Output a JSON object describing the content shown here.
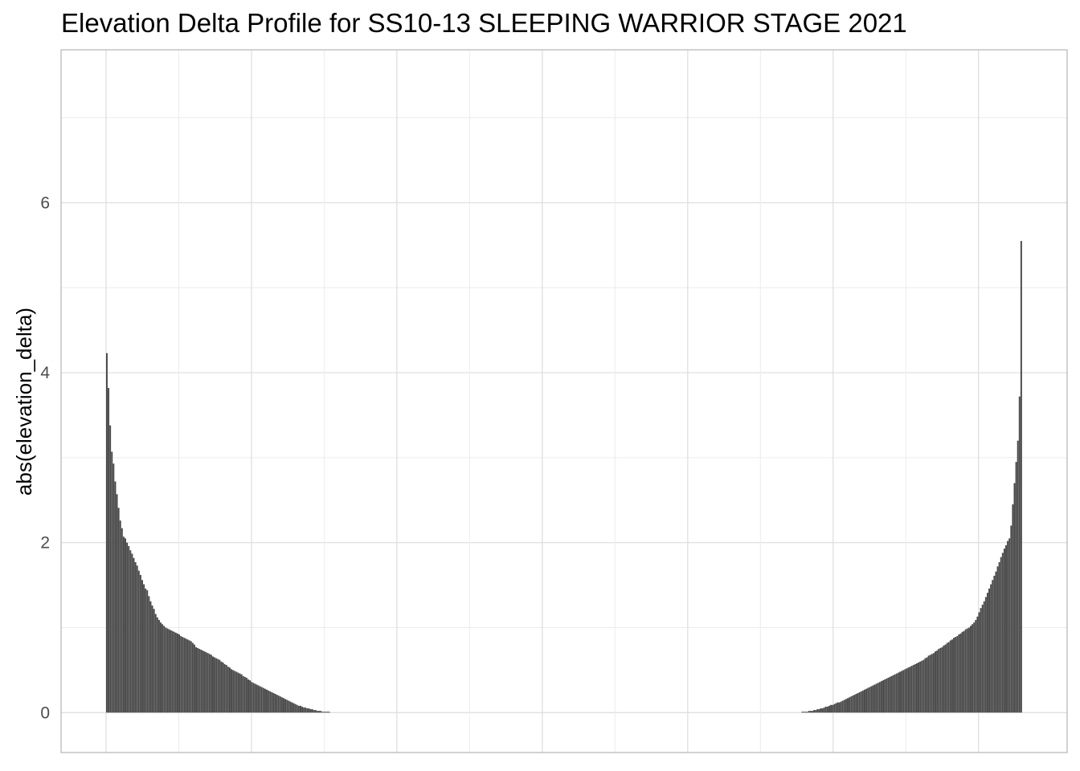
{
  "chart_data": {
    "type": "bar",
    "title": "Elevation Delta Profile for SS10-13 SLEEPING WARRIOR STAGE 2021",
    "xlabel": "",
    "ylabel": "abs(elevation_delta)",
    "ylim": [
      -0.47,
      7.8
    ],
    "y_ticks": [
      0,
      2,
      4,
      6
    ],
    "y_tick_labels": [
      "0",
      "2",
      "4",
      "6"
    ],
    "grid": true,
    "x_count": 565,
    "series": [
      {
        "values": [
          4.23,
          3.82,
          3.38,
          3.07,
          2.93,
          2.72,
          2.57,
          2.41,
          2.26,
          2.17,
          2.07,
          2.05,
          2.0,
          1.96,
          1.91,
          1.87,
          1.82,
          1.77,
          1.73,
          1.67,
          1.62,
          1.56,
          1.51,
          1.46,
          1.44,
          1.37,
          1.31,
          1.26,
          1.22,
          1.16,
          1.12,
          1.09,
          1.06,
          1.04,
          1.02,
          1.0,
          0.99,
          0.98,
          0.97,
          0.96,
          0.95,
          0.94,
          0.93,
          0.92,
          0.9,
          0.89,
          0.88,
          0.87,
          0.86,
          0.85,
          0.84,
          0.82,
          0.8,
          0.77,
          0.76,
          0.75,
          0.74,
          0.73,
          0.72,
          0.71,
          0.7,
          0.69,
          0.68,
          0.66,
          0.65,
          0.64,
          0.63,
          0.62,
          0.6,
          0.59,
          0.57,
          0.56,
          0.54,
          0.53,
          0.51,
          0.5,
          0.49,
          0.48,
          0.47,
          0.46,
          0.45,
          0.43,
          0.42,
          0.41,
          0.39,
          0.38,
          0.36,
          0.35,
          0.34,
          0.33,
          0.32,
          0.31,
          0.3,
          0.29,
          0.28,
          0.27,
          0.26,
          0.25,
          0.24,
          0.23,
          0.22,
          0.21,
          0.2,
          0.19,
          0.18,
          0.17,
          0.16,
          0.15,
          0.14,
          0.13,
          0.12,
          0.11,
          0.1,
          0.09,
          0.08,
          0.08,
          0.07,
          0.06,
          0.06,
          0.05,
          0.05,
          0.04,
          0.04,
          0.03,
          0.03,
          0.02,
          0.02,
          0.02,
          0.01,
          0.01,
          0.01,
          0.01,
          0.01,
          0.0,
          0.0,
          0.0,
          0.0,
          0.0,
          0.0,
          0.0,
          0.0,
          0.0,
          0.0,
          0.0,
          0.0,
          0.0,
          0.0,
          0.0,
          0.0,
          0.0,
          0.0,
          0.0,
          0.0,
          0.0,
          0.0,
          0.0,
          0.0,
          0.0,
          0.0,
          0.0,
          0.0,
          0.0,
          0.0,
          0.0,
          0.0,
          0.0,
          0.0,
          0.0,
          0.0,
          0.0,
          0.0,
          0.0,
          0.0,
          0.0,
          0.0,
          0.0,
          0.0,
          0.0,
          0.0,
          0.0,
          0.0,
          0.0,
          0.0,
          0.0,
          0.0,
          0.0,
          0.0,
          0.0,
          0.0,
          0.0,
          0.0,
          0.0,
          0.0,
          0.0,
          0.0,
          0.0,
          0.0,
          0.0,
          0.0,
          0.0,
          0.0,
          0.0,
          0.0,
          0.0,
          0.0,
          0.0,
          0.0,
          0.0,
          0.0,
          0.0,
          0.0,
          0.0,
          0.0,
          0.0,
          0.0,
          0.0,
          0.0,
          0.0,
          0.0,
          0.0,
          0.0,
          0.0,
          0.0,
          0.0,
          0.0,
          0.0,
          0.0,
          0.0,
          0.0,
          0.0,
          0.0,
          0.0,
          0.0,
          0.0,
          0.0,
          0.0,
          0.0,
          0.0,
          0.0,
          0.0,
          0.0,
          0.0,
          0.0,
          0.0,
          0.0,
          0.0,
          0.0,
          0.0,
          0.0,
          0.0,
          0.0,
          0.0,
          0.0,
          0.0,
          0.0,
          0.0,
          0.0,
          0.0,
          0.0,
          0.0,
          0.0,
          0.0,
          0.0,
          0.0,
          0.0,
          0.0,
          0.0,
          0.0,
          0.0,
          0.0,
          0.0,
          0.0,
          0.0,
          0.0,
          0.0,
          0.0,
          0.0,
          0.0,
          0.0,
          0.0,
          0.0,
          0.0,
          0.0,
          0.0,
          0.0,
          0.0,
          0.0,
          0.0,
          0.0,
          0.0,
          0.0,
          0.0,
          0.0,
          0.0,
          0.0,
          0.0,
          0.0,
          0.0,
          0.0,
          0.0,
          0.0,
          0.0,
          0.0,
          0.0,
          0.0,
          0.0,
          0.0,
          0.0,
          0.0,
          0.0,
          0.0,
          0.0,
          0.0,
          0.0,
          0.0,
          0.0,
          0.0,
          0.0,
          0.0,
          0.0,
          0.0,
          0.0,
          0.0,
          0.0,
          0.0,
          0.0,
          0.0,
          0.0,
          0.0,
          0.0,
          0.0,
          0.0,
          0.0,
          0.0,
          0.0,
          0.0,
          0.0,
          0.0,
          0.0,
          0.0,
          0.0,
          0.0,
          0.0,
          0.0,
          0.0,
          0.0,
          0.0,
          0.0,
          0.0,
          0.0,
          0.0,
          0.0,
          0.0,
          0.0,
          0.0,
          0.0,
          0.0,
          0.0,
          0.0,
          0.0,
          0.0,
          0.0,
          0.0,
          0.0,
          0.0,
          0.0,
          0.0,
          0.0,
          0.0,
          0.0,
          0.0,
          0.0,
          0.0,
          0.0,
          0.0,
          0.0,
          0.0,
          0.0,
          0.0,
          0.0,
          0.0,
          0.0,
          0.0,
          0.0,
          0.0,
          0.0,
          0.0,
          0.0,
          0.0,
          0.0,
          0.0,
          0.0,
          0.0,
          0.0,
          0.0,
          0.0,
          0.0,
          0.0,
          0.0,
          0.0,
          0.0,
          0.0,
          0.0,
          0.0,
          0.0,
          0.0,
          0.0,
          0.0,
          0.0,
          0.0,
          0.0,
          0.0,
          0.0,
          0.01,
          0.01,
          0.01,
          0.01,
          0.02,
          0.02,
          0.02,
          0.03,
          0.03,
          0.04,
          0.04,
          0.05,
          0.05,
          0.06,
          0.07,
          0.07,
          0.08,
          0.09,
          0.09,
          0.1,
          0.11,
          0.12,
          0.12,
          0.13,
          0.14,
          0.15,
          0.16,
          0.17,
          0.18,
          0.19,
          0.2,
          0.21,
          0.22,
          0.23,
          0.24,
          0.25,
          0.26,
          0.27,
          0.28,
          0.29,
          0.3,
          0.31,
          0.32,
          0.33,
          0.34,
          0.35,
          0.36,
          0.37,
          0.38,
          0.39,
          0.4,
          0.41,
          0.42,
          0.43,
          0.44,
          0.45,
          0.46,
          0.47,
          0.48,
          0.49,
          0.5,
          0.51,
          0.52,
          0.53,
          0.54,
          0.55,
          0.56,
          0.57,
          0.58,
          0.59,
          0.6,
          0.61,
          0.62,
          0.64,
          0.65,
          0.67,
          0.68,
          0.69,
          0.7,
          0.72,
          0.73,
          0.75,
          0.76,
          0.77,
          0.79,
          0.8,
          0.82,
          0.83,
          0.85,
          0.86,
          0.88,
          0.89,
          0.9,
          0.92,
          0.93,
          0.95,
          0.96,
          0.98,
          0.99,
          1.0,
          1.02,
          1.04,
          1.06,
          1.09,
          1.13,
          1.18,
          1.23,
          1.27,
          1.31,
          1.36,
          1.41,
          1.46,
          1.51,
          1.56,
          1.61,
          1.66,
          1.72,
          1.77,
          1.83,
          1.88,
          1.93,
          1.97,
          2.02,
          2.05,
          2.2,
          2.45,
          2.7,
          2.95,
          3.2,
          3.72,
          5.55
        ]
      }
    ],
    "colors": {
      "bar": "#474747",
      "grid_major": "#dcdcdc",
      "grid_minor": "#ececec",
      "panel_border": "#b3b3b3",
      "tick_text": "#4d4d4d"
    }
  }
}
